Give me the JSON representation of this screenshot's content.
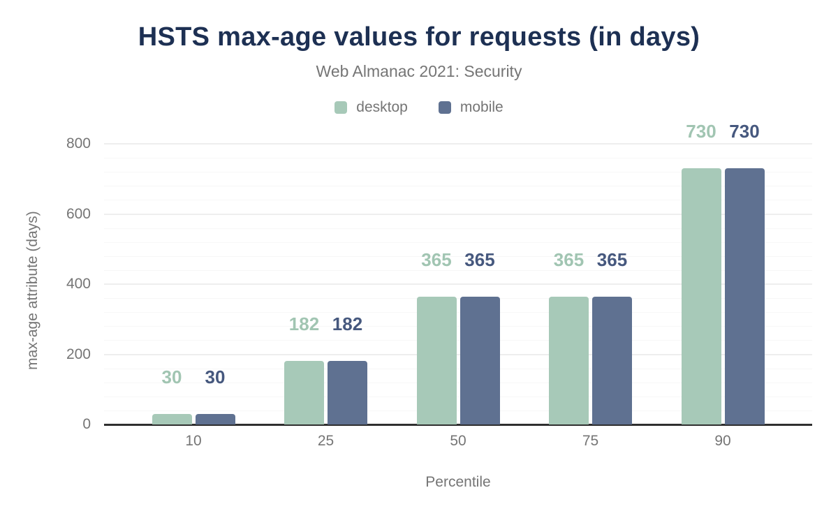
{
  "chart_data": {
    "type": "bar",
    "title": "HSTS max-age values for requests (in days)",
    "subtitle": "Web Almanac 2021: Security",
    "categories": [
      "10",
      "25",
      "50",
      "75",
      "90"
    ],
    "series": [
      {
        "name": "desktop",
        "values": [
          30,
          182,
          365,
          365,
          730
        ],
        "color": "#a7c9b8",
        "label_color": "#a1c5b2"
      },
      {
        "name": "mobile",
        "values": [
          30,
          182,
          365,
          365,
          730
        ],
        "color": "#5f7191",
        "label_color": "#46587e"
      }
    ],
    "xlabel": "Percentile",
    "ylabel": "max-age attribute (days)",
    "ylim": [
      0,
      800
    ],
    "y_ticks": [
      0,
      200,
      400,
      600,
      800
    ],
    "y_minor_step": 40,
    "grid": true,
    "legend_position": "top"
  },
  "colors": {
    "title_text": "#1d3053",
    "muted_text": "#757575",
    "axis_line": "#2f2f2f",
    "grid_major": "#eeeeee",
    "grid_minor": "#f7f7f7",
    "background": "#ffffff"
  }
}
